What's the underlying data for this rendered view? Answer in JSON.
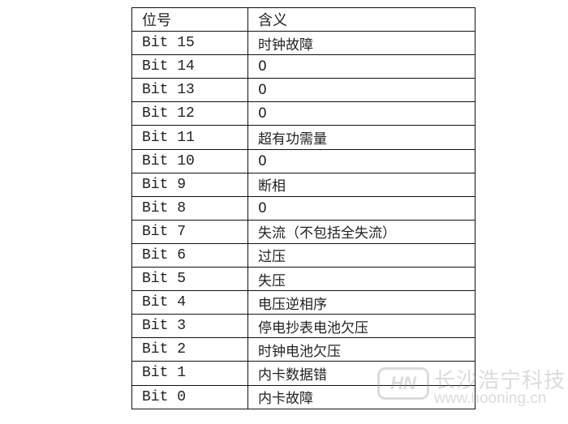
{
  "table": {
    "headers": [
      "位号",
      "含义"
    ],
    "rows": [
      [
        "Bit 15",
        "时钟故障"
      ],
      [
        "Bit 14",
        "0"
      ],
      [
        "Bit 13",
        "0"
      ],
      [
        "Bit 12",
        "0"
      ],
      [
        "Bit 11",
        "超有功需量"
      ],
      [
        "Bit 10",
        "0"
      ],
      [
        "Bit 9",
        "断相"
      ],
      [
        "Bit 8",
        "0"
      ],
      [
        "Bit 7",
        "失流（不包括全失流）"
      ],
      [
        "Bit 6",
        "过压"
      ],
      [
        "Bit 5",
        "失压"
      ],
      [
        "Bit 4",
        "电压逆相序"
      ],
      [
        "Bit 3",
        "停电抄表电池欠压"
      ],
      [
        "Bit 2",
        "时钟电池欠压"
      ],
      [
        "Bit 1",
        "内卡数据错"
      ],
      [
        "Bit 0",
        "内卡故障"
      ]
    ]
  },
  "watermark": {
    "logo_text": "HN",
    "company": "长沙浩宁科技",
    "url": "www.hooning.cn"
  }
}
